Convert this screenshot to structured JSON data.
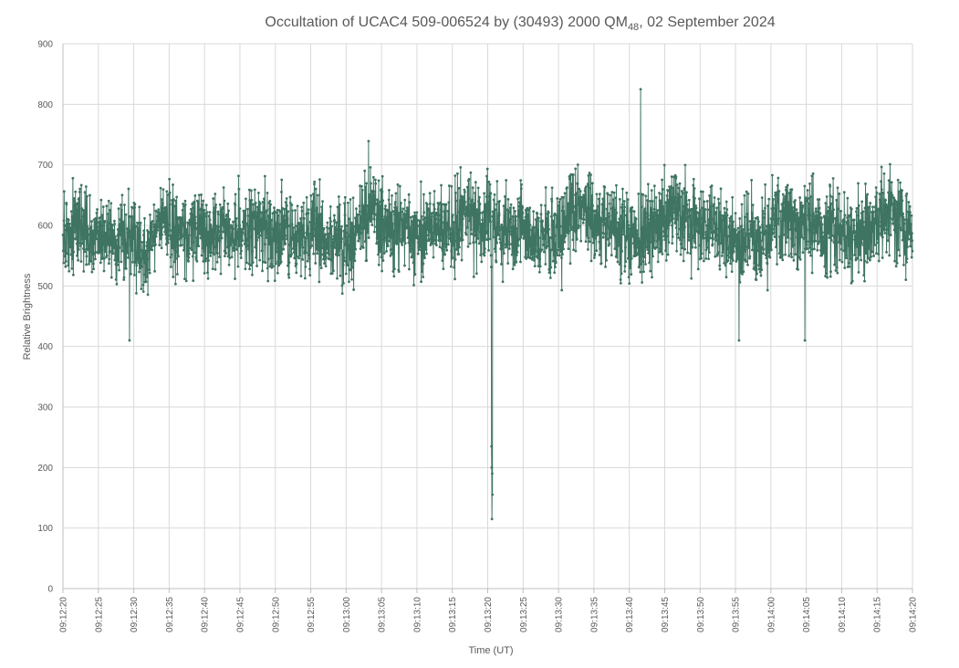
{
  "chart_data": {
    "type": "line",
    "title": "Occultation of UCAC4 509-006524 by (30493) 2000 QM",
    "title_subscript": "48",
    "title_suffix": ", 02 September 2024",
    "xlabel": "Time (UT)",
    "ylabel": "Relative Brightness",
    "ylim": [
      0,
      900
    ],
    "y_ticks": [
      0,
      100,
      200,
      300,
      400,
      500,
      600,
      700,
      800,
      900
    ],
    "xlim": [
      "09:12:20",
      "09:14:20"
    ],
    "x_ticks": [
      "09:12:20",
      "09:12:25",
      "09:12:30",
      "09:12:35",
      "09:12:40",
      "09:12:45",
      "09:12:50",
      "09:12:55",
      "09:13:00",
      "09:13:05",
      "09:13:10",
      "09:13:15",
      "09:13:20",
      "09:13:25",
      "09:13:30",
      "09:13:35",
      "09:13:40",
      "09:13:45",
      "09:13:50",
      "09:13:55",
      "09:14:00",
      "09:14:05",
      "09:14:10",
      "09:14:15",
      "09:14:20"
    ],
    "grid": true,
    "legend": "none",
    "line_color": "#3f7462",
    "marker": "circle",
    "sampling": "approx. 30 samples per second, 09:12:20 to 09:14:20",
    "series": [
      {
        "mean_level": 600,
        "typical_range": [
          430,
          820
        ],
        "peak": {
          "time": "09:13:41.6",
          "value": 845
        },
        "notable_dips": [
          {
            "time": "09:12:29.4",
            "value": 375
          },
          {
            "time": "09:13:55.5",
            "value": 373
          },
          {
            "time": "09:14:04.8",
            "value": 407
          }
        ],
        "occultation_event": {
          "start": "09:13:20.50",
          "end": "09:13:20.90",
          "values": [
            235,
            200,
            115,
            190,
            155
          ]
        }
      }
    ]
  }
}
